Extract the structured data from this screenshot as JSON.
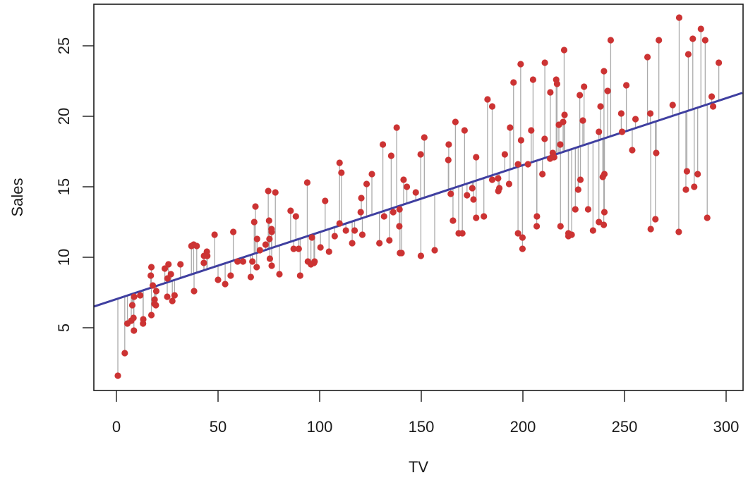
{
  "chart_data": {
    "type": "scatter",
    "title": "",
    "xlabel": "TV",
    "ylabel": "Sales",
    "xlim": [
      -11,
      308
    ],
    "ylim": [
      0.3,
      27.9
    ],
    "x_ticks": [
      0,
      50,
      100,
      150,
      200,
      250,
      300
    ],
    "y_ticks": [
      5,
      10,
      15,
      20,
      25
    ],
    "grid": false,
    "legend": null,
    "colors": {
      "points": "#cc3333",
      "fit_line": "#3f3fa0",
      "residuals": "#aaaaaa",
      "axis": "#1a1a1a"
    },
    "fit_line": {
      "intercept": 7.0326,
      "slope": 0.0475
    },
    "residual_segments": true,
    "x": [
      230.1,
      44.5,
      17.2,
      151.5,
      180.8,
      8.7,
      57.5,
      120.2,
      8.6,
      199.8,
      66.1,
      214.7,
      23.8,
      97.5,
      204.1,
      195.4,
      67.8,
      281.4,
      69.2,
      147.3,
      218.4,
      237.4,
      13.2,
      228.3,
      62.3,
      262.9,
      142.9,
      240.1,
      248.8,
      70.6,
      292.9,
      112.9,
      97.2,
      265.6,
      95.7,
      290.7,
      266.9,
      74.7,
      43.1,
      228.0,
      202.5,
      177.0,
      293.6,
      206.9,
      25.1,
      175.1,
      89.7,
      239.9,
      227.2,
      66.9,
      199.8,
      100.4,
      216.4,
      182.6,
      262.7,
      198.9,
      7.3,
      136.2,
      210.8,
      210.7,
      53.5,
      261.3,
      239.3,
      102.7,
      131.1,
      69.0,
      31.5,
      139.3,
      237.4,
      216.8,
      199.1,
      109.8,
      26.8,
      129.4,
      213.4,
      16.9,
      27.5,
      120.5,
      5.4,
      116.0,
      76.4,
      239.8,
      75.3,
      68.4,
      213.5,
      193.2,
      76.3,
      110.7,
      88.3,
      109.8,
      134.3,
      28.6,
      217.7,
      250.9,
      107.4,
      163.3,
      197.6,
      184.9,
      289.7,
      135.2,
      222.4,
      296.4,
      280.2,
      187.9,
      238.2,
      137.9,
      25.0,
      90.4,
      13.1,
      255.4,
      225.8,
      241.7,
      175.7,
      209.6,
      78.2,
      75.1,
      139.2,
      76.4,
      125.7,
      19.4,
      141.3,
      18.8,
      224.0,
      123.1,
      229.5,
      87.2,
      7.8,
      80.2,
      220.3,
      59.6,
      0.7,
      265.2,
      8.4,
      219.8,
      36.9,
      48.3,
      25.6,
      273.7,
      43.0,
      184.9,
      73.4,
      193.7,
      220.5,
      104.6,
      96.2,
      140.3,
      240.1,
      243.2,
      38.0,
      44.7,
      280.7,
      121.0,
      197.6,
      171.3,
      187.8,
      4.1,
      93.9,
      149.8,
      11.7,
      131.7,
      172.5,
      85.7,
      188.4,
      163.5,
      117.2,
      234.5,
      17.9,
      206.8,
      215.4,
      284.3,
      50.0,
      164.5,
      19.6,
      168.4,
      222.4,
      276.9,
      248.4,
      170.2,
      276.7,
      165.6,
      156.6,
      218.5,
      56.2,
      287.6,
      253.8,
      205.0,
      139.5,
      191.1,
      286.0,
      18.7,
      39.5,
      75.5,
      17.2,
      166.8,
      149.7,
      38.2,
      94.2,
      177.0,
      283.6,
      232.1
    ],
    "y": [
      22.1,
      10.4,
      9.3,
      18.5,
      12.9,
      7.2,
      11.8,
      13.2,
      4.8,
      10.6,
      8.6,
      17.4,
      9.2,
      9.7,
      19.0,
      22.4,
      12.5,
      24.4,
      11.3,
      14.6,
      18.0,
      12.5,
      5.6,
      15.5,
      9.7,
      12.0,
      15.0,
      15.9,
      18.9,
      10.5,
      21.4,
      11.9,
      9.6,
      17.4,
      9.5,
      12.8,
      25.4,
      14.7,
      10.1,
      21.5,
      16.6,
      17.1,
      20.7,
      12.9,
      8.5,
      14.9,
      10.6,
      23.2,
      14.8,
      9.7,
      11.4,
      10.7,
      22.6,
      21.2,
      20.2,
      23.7,
      5.5,
      13.2,
      23.8,
      18.4,
      8.1,
      24.2,
      15.7,
      14.0,
      18.0,
      9.3,
      9.5,
      13.4,
      18.9,
      22.3,
      18.3,
      12.4,
      8.8,
      11.0,
      17.0,
      8.7,
      6.9,
      14.2,
      5.3,
      11.0,
      11.8,
      12.3,
      11.3,
      13.6,
      21.7,
      15.2,
      12.0,
      16.0,
      12.9,
      16.7,
      11.2,
      7.3,
      19.4,
      22.2,
      11.5,
      16.9,
      11.7,
      15.5,
      25.4,
      17.2,
      11.7,
      23.8,
      14.8,
      14.7,
      20.7,
      19.2,
      7.2,
      8.7,
      5.3,
      19.8,
      13.4,
      21.8,
      14.1,
      15.9,
      14.6,
      12.6,
      12.2,
      9.4,
      15.9,
      6.6,
      15.5,
      7.0,
      11.6,
      15.2,
      19.7,
      10.6,
      6.6,
      8.8,
      24.7,
      9.7,
      1.6,
      12.7,
      5.7,
      19.6,
      10.8,
      11.6,
      9.5,
      20.8,
      9.6,
      20.7,
      10.9,
      19.2,
      20.1,
      10.4,
      11.4,
      10.3,
      13.2,
      25.4,
      10.9,
      10.1,
      16.1,
      11.6,
      16.6,
      19.0,
      15.6,
      3.2,
      15.3,
      10.1,
      7.3,
      12.9,
      14.4,
      13.3,
      14.9,
      18.0,
      11.9,
      11.9,
      8.0,
      12.2,
      17.1,
      15.0,
      8.4,
      14.5,
      7.6,
      11.7,
      11.5,
      27.0,
      20.2,
      11.7,
      11.8,
      12.6,
      10.5,
      12.2,
      8.7,
      26.2,
      17.6,
      22.6,
      10.3,
      17.3,
      15.9,
      6.7,
      10.8,
      9.9,
      5.9,
      19.6,
      17.3,
      7.6,
      9.7,
      12.8,
      25.5,
      13.4
    ]
  }
}
